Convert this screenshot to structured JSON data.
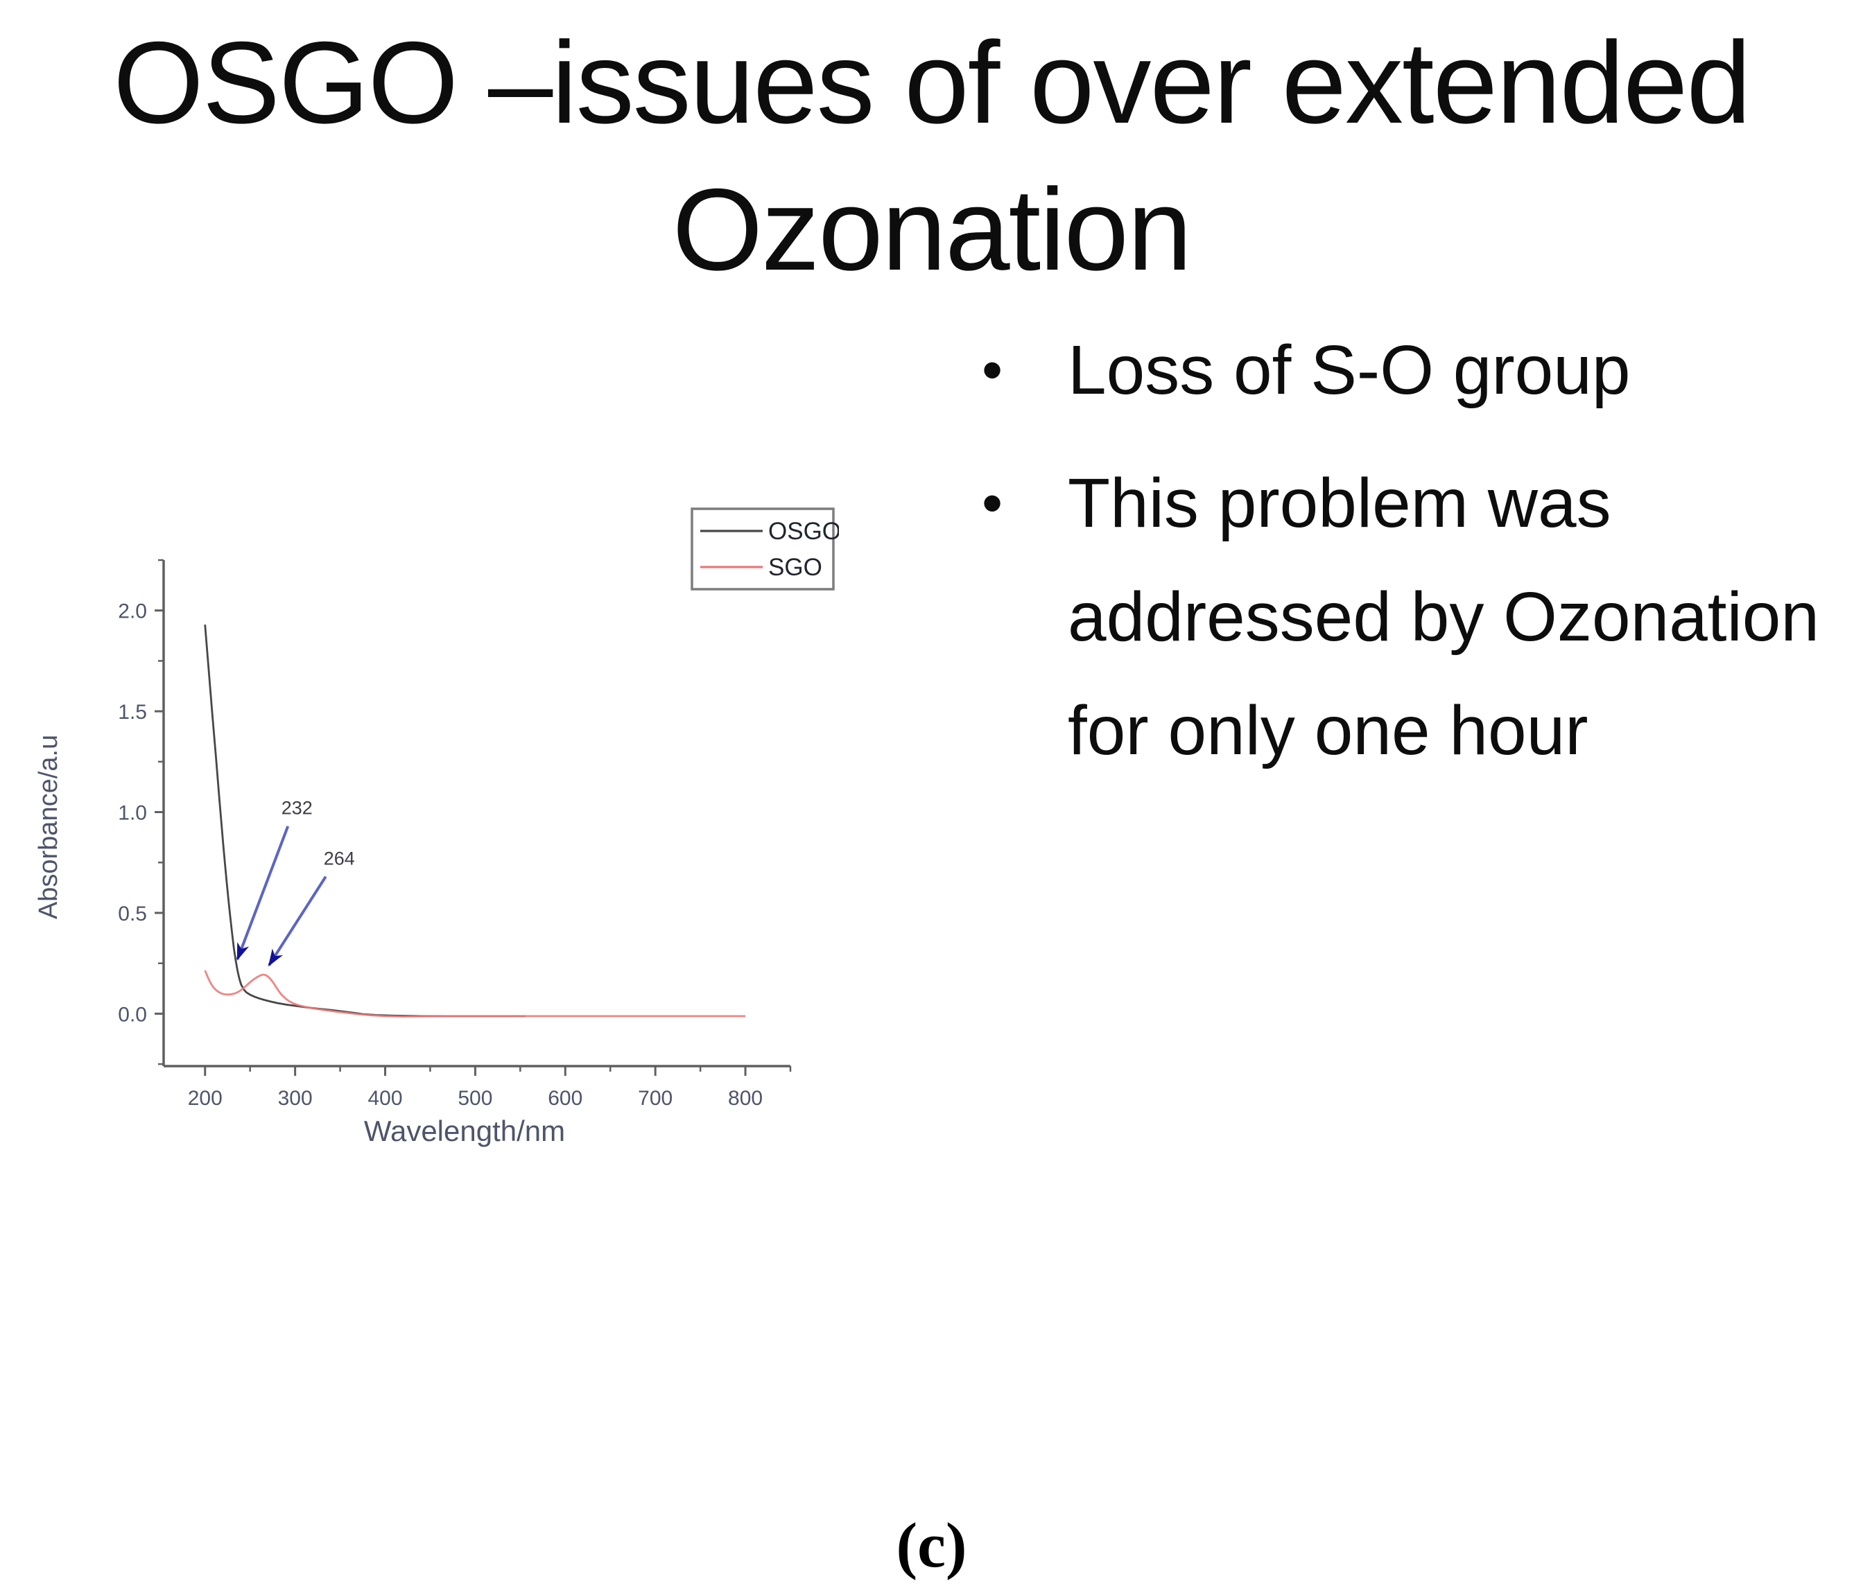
{
  "slide": {
    "title_line1": "OSGO –issues of over extended",
    "title_line2": "Ozonation",
    "bullets": [
      {
        "lines": [
          "Loss of S-O group"
        ]
      },
      {
        "lines": [
          "This problem was",
          "addressed by Ozonation",
          "for only one hour"
        ]
      }
    ],
    "caption": "(c)"
  },
  "chart_data": {
    "type": "line",
    "title": "",
    "xlabel": "Wavelength/nm",
    "ylabel": "Absorbance/a.u",
    "xlim": [
      154,
      850
    ],
    "ylim": [
      -0.26,
      2.25
    ],
    "x_ticks": [
      200,
      300,
      400,
      500,
      600,
      700,
      800
    ],
    "x_minor_ticks": [
      250,
      350,
      450,
      550,
      650,
      750,
      850
    ],
    "y_ticks": [
      0.0,
      0.5,
      1.0,
      1.5,
      2.0
    ],
    "y_tick_labels": [
      "0.0",
      "0.5",
      "1.0",
      "1.5",
      "2.0"
    ],
    "y_minor_ticks": [
      -0.25,
      0.25,
      0.75,
      1.25,
      1.75,
      2.25
    ],
    "grid": false,
    "axis_color": "#5f5f5f",
    "tick_label_color": "#4e546a",
    "legend": {
      "position": "upper-right",
      "border_color": "#7d7d7d",
      "text_color": "#22242e",
      "entries": [
        {
          "label": "OSGO",
          "color": "#474747"
        },
        {
          "label": "SGO",
          "color": "#ee7878"
        }
      ]
    },
    "series": [
      {
        "name": "OSGO",
        "color": "#474747",
        "points": [
          [
            200,
            1.93
          ],
          [
            202,
            1.82
          ],
          [
            204,
            1.71
          ],
          [
            206,
            1.6
          ],
          [
            208,
            1.49
          ],
          [
            210,
            1.385
          ],
          [
            212,
            1.28
          ],
          [
            214,
            1.17
          ],
          [
            216,
            1.06
          ],
          [
            218,
            0.955
          ],
          [
            220,
            0.85
          ],
          [
            222,
            0.75
          ],
          [
            224,
            0.655
          ],
          [
            226,
            0.565
          ],
          [
            228,
            0.48
          ],
          [
            230,
            0.4
          ],
          [
            232,
            0.325
          ],
          [
            234,
            0.265
          ],
          [
            236,
            0.215
          ],
          [
            238,
            0.175
          ],
          [
            240,
            0.145
          ],
          [
            243,
            0.12
          ],
          [
            246,
            0.105
          ],
          [
            250,
            0.094
          ],
          [
            255,
            0.084
          ],
          [
            260,
            0.076
          ],
          [
            266,
            0.068
          ],
          [
            272,
            0.061
          ],
          [
            280,
            0.053
          ],
          [
            290,
            0.045
          ],
          [
            300,
            0.039
          ],
          [
            312,
            0.032
          ],
          [
            325,
            0.025
          ],
          [
            340,
            0.018
          ],
          [
            355,
            0.01
          ],
          [
            365,
            0.004
          ],
          [
            375,
            -0.002
          ],
          [
            390,
            -0.007
          ],
          [
            410,
            -0.01
          ],
          [
            440,
            -0.012
          ],
          [
            480,
            -0.012
          ],
          [
            520,
            -0.012
          ],
          [
            556,
            -0.012
          ]
        ]
      },
      {
        "name": "SGO",
        "color": "#ee7878",
        "points": [
          [
            200,
            0.215
          ],
          [
            202,
            0.193
          ],
          [
            204,
            0.172
          ],
          [
            206,
            0.154
          ],
          [
            208,
            0.139
          ],
          [
            210,
            0.127
          ],
          [
            213,
            0.114
          ],
          [
            216,
            0.105
          ],
          [
            219,
            0.099
          ],
          [
            222,
            0.096
          ],
          [
            226,
            0.095
          ],
          [
            230,
            0.097
          ],
          [
            234,
            0.102
          ],
          [
            238,
            0.111
          ],
          [
            242,
            0.124
          ],
          [
            246,
            0.14
          ],
          [
            250,
            0.156
          ],
          [
            254,
            0.17
          ],
          [
            258,
            0.182
          ],
          [
            261,
            0.189
          ],
          [
            264,
            0.194
          ],
          [
            267,
            0.192
          ],
          [
            270,
            0.184
          ],
          [
            273,
            0.17
          ],
          [
            276,
            0.152
          ],
          [
            279,
            0.131
          ],
          [
            282,
            0.111
          ],
          [
            285,
            0.094
          ],
          [
            289,
            0.077
          ],
          [
            293,
            0.063
          ],
          [
            298,
            0.051
          ],
          [
            304,
            0.042
          ],
          [
            312,
            0.033
          ],
          [
            322,
            0.025
          ],
          [
            334,
            0.017
          ],
          [
            346,
            0.01
          ],
          [
            358,
            0.004
          ],
          [
            370,
            -0.002
          ],
          [
            385,
            -0.008
          ],
          [
            400,
            -0.012
          ],
          [
            420,
            -0.014
          ],
          [
            445,
            -0.013
          ],
          [
            470,
            -0.012
          ],
          [
            500,
            -0.012
          ],
          [
            540,
            -0.012
          ],
          [
            580,
            -0.012
          ],
          [
            620,
            -0.012
          ],
          [
            660,
            -0.012
          ],
          [
            700,
            -0.012
          ],
          [
            740,
            -0.012
          ],
          [
            770,
            -0.012
          ],
          [
            800,
            -0.012
          ]
        ]
      }
    ],
    "annotations": [
      {
        "label": "232",
        "label_xy": [
          302,
          1.02
        ],
        "arrow_from": [
          292,
          0.93
        ],
        "arrow_to": [
          236,
          0.27
        ],
        "line_color": "#5a64c8",
        "head_color": "#11119a",
        "text_color": "#3c3c46"
      },
      {
        "label": "264",
        "label_xy": [
          349,
          0.77
        ],
        "arrow_from": [
          334,
          0.68
        ],
        "arrow_to": [
          271,
          0.24
        ],
        "line_color": "#5a64c8",
        "head_color": "#11119a",
        "text_color": "#3c3c46"
      }
    ]
  }
}
